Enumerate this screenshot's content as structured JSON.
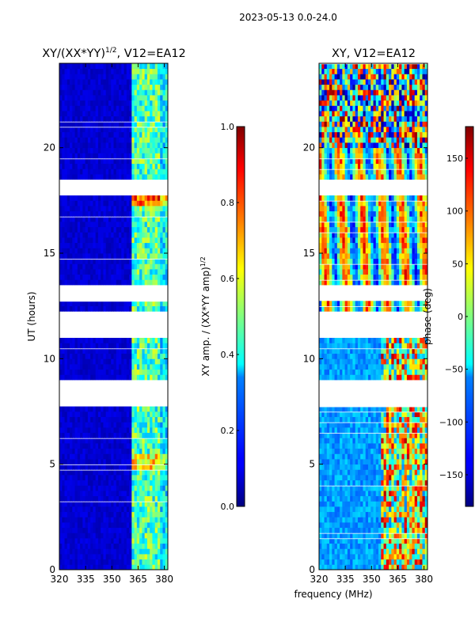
{
  "suptitle": "2023-05-13 0.0-24.0",
  "shared_xlabel": "frequency (MHz)",
  "chart_data": [
    {
      "type": "heatmap",
      "title_main": "XY/(XX*YY)",
      "title_sup": "1/2",
      "title_tail": ", V12=EA12",
      "ylabel": "UT (hours)",
      "x_ticks": [
        320,
        335,
        350,
        365,
        380
      ],
      "y_ticks": [
        0,
        5,
        10,
        15,
        20
      ],
      "xlim": [
        320,
        382
      ],
      "ylim": [
        0,
        24
      ],
      "colorbar": {
        "label_main": "XY amp. / (XX*YY amp)",
        "label_sup": "1/2",
        "ticks": [
          "0.0",
          "0.2",
          "0.4",
          "0.6",
          "0.8",
          "1.0"
        ],
        "range": [
          0.0,
          1.0
        ]
      }
    },
    {
      "type": "heatmap",
      "title": "XY, V12=EA12",
      "x_ticks": [
        320,
        335,
        350,
        365,
        380
      ],
      "y_ticks": [
        0,
        5,
        10,
        15,
        20
      ],
      "xlim": [
        320,
        382
      ],
      "ylim": [
        0,
        24
      ],
      "colorbar": {
        "label": "phase (deg)",
        "ticks": [
          "−150",
          "−100",
          "−50",
          "0",
          "50",
          "100",
          "150"
        ],
        "range": [
          -180,
          180
        ]
      }
    }
  ],
  "data_gaps_hours": [
    [
      10.95,
      12.2
    ],
    [
      12.75,
      13.6
    ],
    [
      17.7,
      18.4
    ],
    [
      7.75,
      8.9
    ]
  ]
}
